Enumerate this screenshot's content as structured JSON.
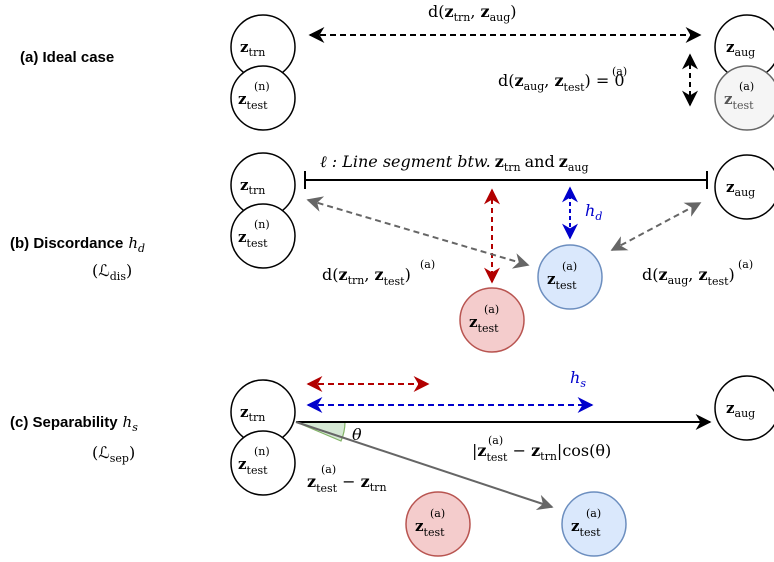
{
  "rows": {
    "a": {
      "label": "(a) Ideal case"
    },
    "b": {
      "label": "(b) Discordance",
      "label_sym": "h",
      "label_sub": "d",
      "loss": "(ℒ",
      "loss_sub": "dis",
      "loss_close": ")"
    },
    "c": {
      "label": "(c) Separability",
      "label_sym": "h",
      "label_sub": "s",
      "loss": "(ℒ",
      "loss_sub": "sep",
      "loss_close": ")"
    }
  },
  "nodes": {
    "z": "z",
    "trn": "trn",
    "aug": "aug",
    "test": "test",
    "n": "(n)",
    "a": "(a)"
  },
  "text": {
    "d_open": "d(",
    "comma": ", ",
    "close": ")",
    "eq_zero": ") = 0",
    "line_seg": "ℓ : Line segment btw.",
    "and": "and",
    "hd_h": "h",
    "hd_sub": "d",
    "hs_h": "h",
    "hs_sub": "s",
    "theta": "θ",
    "abs_open": "|",
    "minus": " − ",
    "abs_close": "|cos(θ)"
  },
  "colors": {
    "red_fill": "#f4cccc",
    "red_stroke": "#b85450",
    "blue_fill": "#dae8fc",
    "blue_stroke": "#6c8ebf",
    "gray_fill": "#f5f5f5",
    "gray_stroke": "#666666",
    "angle_fill": "#d5e8d4",
    "angle_stroke": "#82b366",
    "dark_red": "#b20000",
    "dark_blue": "#0000cc"
  }
}
